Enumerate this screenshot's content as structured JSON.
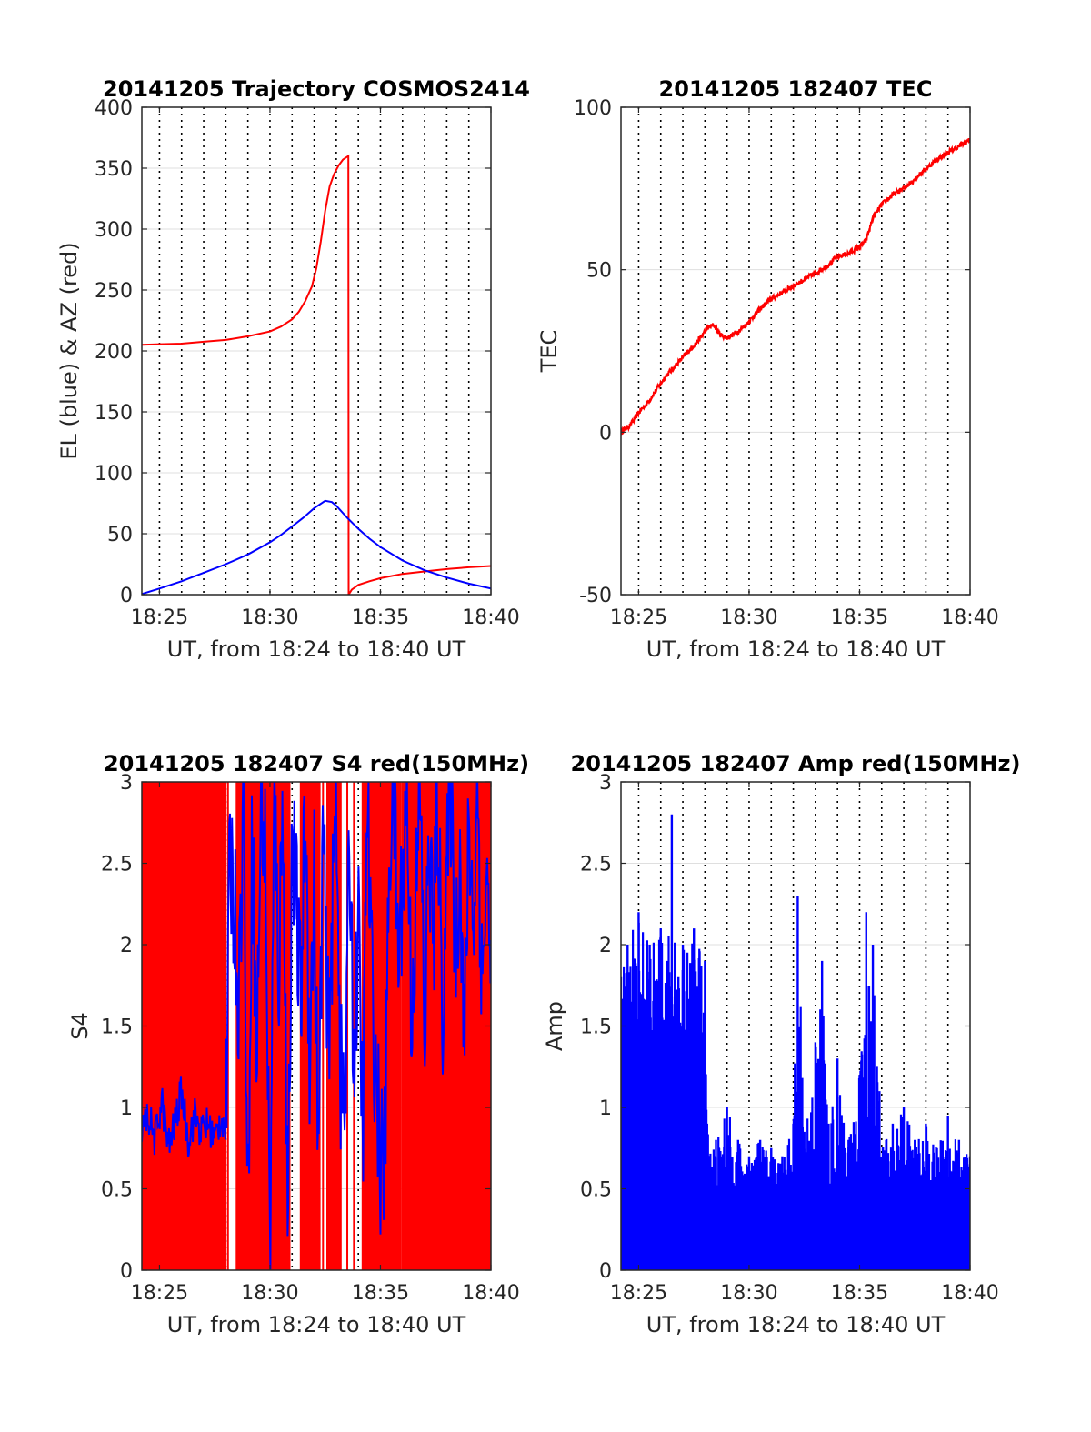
{
  "figure_colors": {
    "az_red": "#ff0000",
    "el_blue": "#0000ff",
    "grid": "#000000",
    "axes": "#262626"
  },
  "chart_data": [
    {
      "type": "line",
      "title": "20141205 Trajectory COSMOS2414",
      "xlabel": "UT, from 18:24 to 18:40 UT",
      "ylabel": "EL (blue) & AZ (red)",
      "xlim": [
        24.2,
        40.0
      ],
      "ylim": [
        0,
        400
      ],
      "xticks": [
        "18:25",
        "18:30",
        "18:35",
        "18:40"
      ],
      "yticks": [
        "0",
        "50",
        "100",
        "150",
        "200",
        "250",
        "300",
        "350",
        "400"
      ],
      "grid": "vertical dotted every minute, horizontal solid light",
      "series": [
        {
          "color": "#ff0000",
          "x": [
            24.2,
            25,
            26,
            27,
            28,
            29,
            30,
            30.5,
            31,
            31.3,
            31.6,
            31.9,
            32.1,
            32.3,
            32.5,
            32.7,
            32.9,
            33.1,
            33.3,
            33.55,
            33.56,
            33.7,
            34,
            34.5,
            35,
            36,
            37,
            38,
            39,
            40
          ],
          "values": [
            205,
            205.5,
            206,
            207.5,
            209,
            212,
            216,
            220,
            226,
            232,
            241,
            253,
            268,
            290,
            315,
            335,
            345,
            352,
            357,
            360,
            0,
            4,
            8,
            11,
            13.5,
            17,
            19,
            21,
            22.5,
            23.5
          ]
        },
        {
          "color": "#0000ff",
          "x": [
            24.2,
            25,
            26,
            27,
            28,
            29,
            30,
            30.5,
            31,
            31.5,
            32,
            32.5,
            32.8,
            33,
            33.5,
            34,
            34.5,
            35,
            36,
            37,
            38,
            39,
            40
          ],
          "values": [
            0.5,
            5,
            11,
            18,
            25,
            33,
            43,
            49,
            56,
            63,
            71,
            77,
            76,
            73,
            63,
            54,
            46,
            39,
            28,
            20,
            14,
            9,
            5
          ]
        }
      ]
    },
    {
      "type": "line",
      "title": "20141205 182407 TEC",
      "xlabel": "UT, from 18:24 to 18:40 UT",
      "ylabel": "TEC",
      "xlim": [
        24.2,
        40.0
      ],
      "ylim": [
        -50,
        100
      ],
      "xticks": [
        "18:25",
        "18:30",
        "18:35",
        "18:40"
      ],
      "yticks": [
        "-50",
        "0",
        "50",
        "100"
      ],
      "series": [
        {
          "color": "#ff0000",
          "x": [
            24.2,
            24.6,
            25,
            25.4,
            25.8,
            26.2,
            26.6,
            27,
            27.4,
            27.8,
            28.1,
            28.4,
            28.7,
            29,
            29.5,
            30,
            30.5,
            31,
            31.5,
            32,
            32.5,
            33,
            33.5,
            34,
            34.5,
            35,
            35.3,
            35.6,
            36,
            36.5,
            37,
            37.5,
            38,
            38.5,
            39,
            39.5,
            40
          ],
          "values": [
            0,
            2,
            6,
            9,
            13,
            17,
            20,
            23,
            26,
            29,
            32,
            33,
            30,
            29,
            31,
            34,
            38,
            41,
            43,
            45,
            47,
            49,
            51,
            54,
            55,
            57,
            59,
            66,
            70,
            73,
            75,
            78,
            81,
            84,
            86,
            88,
            90
          ]
        }
      ]
    },
    {
      "type": "line",
      "title": "20141205 182407 S4 red(150MHz)",
      "xlabel": "UT, from 18:24 to 18:40 UT",
      "ylabel": "S4",
      "xlim": [
        24.2,
        40.0
      ],
      "ylim": [
        0,
        3
      ],
      "xticks": [
        "18:25",
        "18:30",
        "18:35",
        "18:40"
      ],
      "yticks": [
        "0",
        "0.5",
        "1",
        "1.5",
        "2",
        "2.5",
        "3"
      ],
      "series": [
        {
          "color": "#ff0000",
          "bands": [
            [
              24.2,
              28.0
            ],
            [
              28.5,
              30.9
            ],
            [
              31.4,
              32.3
            ],
            [
              32.6,
              33.2
            ],
            [
              34.2,
              40.0
            ]
          ],
          "baseline_segment": {
            "x": [
              24.3,
              28.0
            ],
            "value": 0.78
          },
          "scatter_spikes": [
            28.1,
            29.5,
            30.0,
            31.7,
            32.4,
            33.5,
            33.8
          ]
        },
        {
          "color": "#0000ff",
          "x": [
            24.2,
            24.5,
            24.8,
            25.1,
            25.4,
            25.7,
            26.0,
            26.3,
            26.6,
            26.9,
            27.2,
            27.5,
            27.8,
            28.0,
            28.2,
            28.4,
            28.6,
            28.8,
            29.0,
            29.2,
            29.4,
            29.6,
            29.8,
            30.0,
            30.2,
            30.4,
            30.6,
            30.8,
            31.0,
            31.2,
            31.4,
            31.6,
            31.8,
            32.0,
            32.2,
            32.4,
            32.6,
            32.8,
            33.0,
            33.2,
            33.4,
            33.6,
            33.8,
            34.0,
            34.2,
            34.4,
            34.6,
            34.8,
            35.0,
            35.2,
            35.4,
            35.6,
            35.8,
            36.0,
            36.2,
            36.4,
            36.6,
            36.8,
            37.0,
            37.2,
            37.4,
            37.6,
            37.8,
            38.0,
            38.2,
            38.4,
            38.6,
            38.8,
            39.0,
            39.2,
            39.4,
            39.6,
            39.8,
            40.0
          ],
          "values": [
            0.85,
            0.95,
            0.8,
            1.05,
            0.75,
            0.9,
            1.1,
            0.8,
            0.95,
            0.85,
            0.9,
            0.8,
            0.95,
            0.85,
            2.6,
            2.2,
            1.7,
            3.0,
            0.3,
            2.8,
            1.2,
            3.0,
            2.5,
            0.1,
            2.9,
            1.8,
            3.0,
            0.2,
            2.7,
            2.2,
            1.6,
            2.9,
            1.3,
            2.4,
            0.6,
            2.8,
            1.4,
            2.0,
            3.0,
            1.2,
            0.9,
            2.7,
            1.3,
            2.1,
            0.8,
            2.9,
            1.8,
            1.2,
            0.7,
            0.65,
            2.6,
            3.0,
            1.9,
            2.4,
            2.9,
            1.6,
            2.2,
            3.0,
            1.4,
            2.7,
            2.0,
            2.9,
            1.6,
            2.4,
            3.0,
            1.9,
            2.6,
            1.3,
            2.8,
            2.1,
            3.0,
            1.7,
            2.5,
            1.6
          ]
        }
      ]
    },
    {
      "type": "bar",
      "title": "20141205 182407 Amp red(150MHz)",
      "xlabel": "UT, from 18:24 to 18:40 UT",
      "ylabel": "Amp",
      "xlim": [
        24.2,
        40.0
      ],
      "ylim": [
        0,
        3
      ],
      "xticks": [
        "18:25",
        "18:30",
        "18:35",
        "18:40"
      ],
      "yticks": [
        "0",
        "0.5",
        "1",
        "1.5",
        "2",
        "2.5",
        "3"
      ],
      "series": [
        {
          "color": "#0000ff",
          "envelope": {
            "x": [
              24.2,
              24.5,
              25.0,
              25.5,
              26.0,
              26.3,
              26.5,
              26.8,
              27.0,
              27.5,
              28.0,
              28.1,
              28.5,
              29.0,
              29.5,
              30.0,
              30.5,
              31.0,
              31.5,
              32.0,
              32.2,
              32.5,
              33.0,
              33.3,
              33.6,
              34.0,
              34.5,
              35.0,
              35.3,
              35.6,
              35.9,
              36.2,
              36.5,
              37.0,
              37.5,
              38.0,
              38.5,
              39.0,
              39.5,
              40.0
            ],
            "peak": [
              1.8,
              2.0,
              2.2,
              2.0,
              2.1,
              1.9,
              2.8,
              1.8,
              2.0,
              2.1,
              1.9,
              0.9,
              0.8,
              1.0,
              0.8,
              0.7,
              0.8,
              0.75,
              0.7,
              0.9,
              2.3,
              0.85,
              1.4,
              1.9,
              0.9,
              1.3,
              0.8,
              1.2,
              2.2,
              2.0,
              1.1,
              0.8,
              0.9,
              1.0,
              0.8,
              0.9,
              0.75,
              0.95,
              0.8,
              0.7
            ],
            "floor": [
              1.3,
              1.4,
              1.3,
              1.35,
              1.3,
              1.25,
              1.3,
              1.3,
              1.3,
              1.35,
              1.3,
              0.55,
              0.5,
              0.52,
              0.5,
              0.5,
              0.5,
              0.5,
              0.5,
              0.5,
              0.55,
              0.5,
              0.52,
              0.55,
              0.5,
              0.52,
              0.5,
              0.55,
              0.6,
              0.55,
              0.52,
              0.5,
              0.5,
              0.52,
              0.5,
              0.5,
              0.5,
              0.5,
              0.5,
              0.5
            ]
          }
        }
      ]
    }
  ]
}
